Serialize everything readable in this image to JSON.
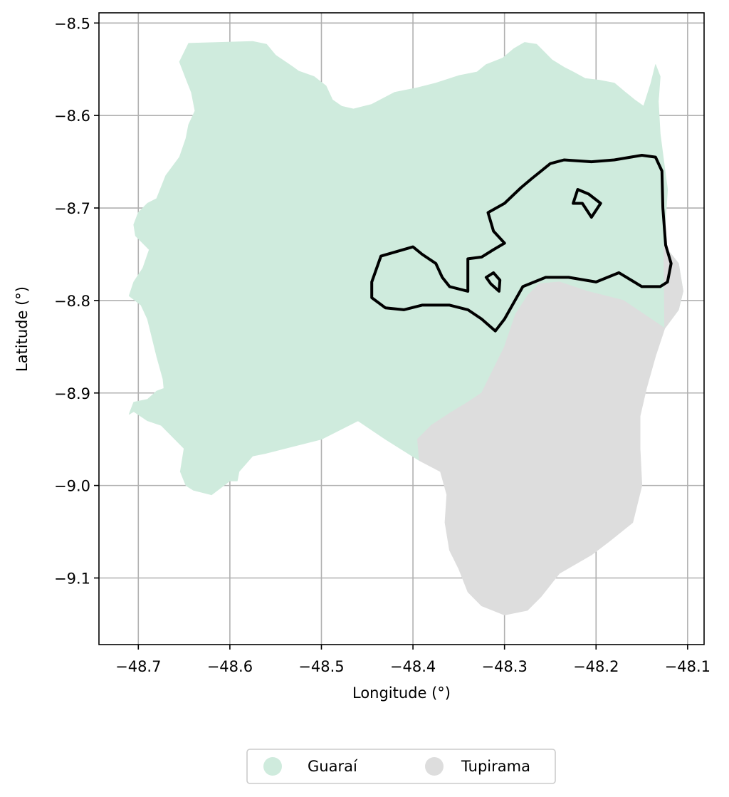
{
  "chart_data": {
    "type": "map",
    "xlabel": "Longitude (°)",
    "ylabel": "Latitude (°)",
    "xlim": [
      -48.743,
      -48.082
    ],
    "ylim": [
      -9.172,
      -8.489
    ],
    "grid": true,
    "xticks": [
      {
        "value": -48.7,
        "label": "−48.7"
      },
      {
        "value": -48.6,
        "label": "−48.6"
      },
      {
        "value": -48.5,
        "label": "−48.5"
      },
      {
        "value": -48.4,
        "label": "−48.4"
      },
      {
        "value": -48.3,
        "label": "−48.3"
      },
      {
        "value": -48.2,
        "label": "−48.2"
      },
      {
        "value": -48.1,
        "label": "−48.1"
      }
    ],
    "yticks": [
      {
        "value": -8.5,
        "label": "−8.5"
      },
      {
        "value": -8.6,
        "label": "−8.6"
      },
      {
        "value": -8.7,
        "label": "−8.7"
      },
      {
        "value": -8.8,
        "label": "−8.8"
      },
      {
        "value": -8.9,
        "label": "−8.9"
      },
      {
        "value": -9.0,
        "label": "−9.0"
      },
      {
        "value": -9.1,
        "label": "−9.1"
      }
    ],
    "legend": {
      "placement": "bottom-center",
      "entries": [
        {
          "name": "Guaraí",
          "color": "#cfebdd"
        },
        {
          "name": "Tupirama",
          "color": "#dddddd"
        }
      ]
    },
    "regions": [
      {
        "name": "Guaraí",
        "color": "#cfebdd",
        "coords": [
          [
            -48.655,
            -8.542
          ],
          [
            -48.645,
            -8.522
          ],
          [
            -48.575,
            -8.52
          ],
          [
            -48.56,
            -8.523
          ],
          [
            -48.55,
            -8.535
          ],
          [
            -48.538,
            -8.543
          ],
          [
            -48.532,
            -8.547
          ],
          [
            -48.525,
            -8.552
          ],
          [
            -48.508,
            -8.558
          ],
          [
            -48.495,
            -8.568
          ],
          [
            -48.488,
            -8.583
          ],
          [
            -48.478,
            -8.59
          ],
          [
            -48.465,
            -8.593
          ],
          [
            -48.445,
            -8.588
          ],
          [
            -48.42,
            -8.575
          ],
          [
            -48.395,
            -8.57
          ],
          [
            -48.375,
            -8.565
          ],
          [
            -48.35,
            -8.557
          ],
          [
            -48.33,
            -8.553
          ],
          [
            -48.32,
            -8.545
          ],
          [
            -48.302,
            -8.538
          ],
          [
            -48.29,
            -8.528
          ],
          [
            -48.278,
            -8.521
          ],
          [
            -48.265,
            -8.523
          ],
          [
            -48.248,
            -8.54
          ],
          [
            -48.235,
            -8.548
          ],
          [
            -48.225,
            -8.553
          ],
          [
            -48.212,
            -8.56
          ],
          [
            -48.196,
            -8.562
          ],
          [
            -48.18,
            -8.565
          ],
          [
            -48.168,
            -8.575
          ],
          [
            -48.158,
            -8.583
          ],
          [
            -48.148,
            -8.59
          ],
          [
            -48.14,
            -8.565
          ],
          [
            -48.135,
            -8.545
          ],
          [
            -48.13,
            -8.558
          ],
          [
            -48.132,
            -8.585
          ],
          [
            -48.13,
            -8.62
          ],
          [
            -48.126,
            -8.65
          ],
          [
            -48.122,
            -8.68
          ],
          [
            -48.124,
            -8.71
          ],
          [
            -48.126,
            -8.74
          ],
          [
            -48.11,
            -8.76
          ],
          [
            -48.105,
            -8.79
          ],
          [
            -48.11,
            -8.81
          ],
          [
            -48.125,
            -8.83
          ],
          [
            -48.17,
            -8.8
          ],
          [
            -48.21,
            -8.79
          ],
          [
            -48.24,
            -8.78
          ],
          [
            -48.262,
            -8.782
          ],
          [
            -48.275,
            -8.795
          ],
          [
            -48.288,
            -8.815
          ],
          [
            -48.3,
            -8.85
          ],
          [
            -48.315,
            -8.88
          ],
          [
            -48.325,
            -8.9
          ],
          [
            -48.34,
            -8.91
          ],
          [
            -48.36,
            -8.922
          ],
          [
            -48.38,
            -8.935
          ],
          [
            -48.395,
            -8.95
          ],
          [
            -48.393,
            -8.973
          ],
          [
            -48.43,
            -8.95
          ],
          [
            -48.46,
            -8.93
          ],
          [
            -48.48,
            -8.94
          ],
          [
            -48.5,
            -8.95
          ],
          [
            -48.54,
            -8.96
          ],
          [
            -48.56,
            -8.965
          ],
          [
            -48.575,
            -8.968
          ],
          [
            -48.59,
            -8.985
          ],
          [
            -48.592,
            -8.995
          ],
          [
            -48.6,
            -8.995
          ],
          [
            -48.62,
            -9.01
          ],
          [
            -48.64,
            -9.005
          ],
          [
            -48.648,
            -9.0
          ],
          [
            -48.654,
            -8.985
          ],
          [
            -48.65,
            -8.96
          ],
          [
            -48.665,
            -8.945
          ],
          [
            -48.675,
            -8.935
          ],
          [
            -48.69,
            -8.93
          ],
          [
            -48.705,
            -8.92
          ],
          [
            -48.71,
            -8.923
          ],
          [
            -48.705,
            -8.91
          ],
          [
            -48.69,
            -8.907
          ],
          [
            -48.68,
            -8.898
          ],
          [
            -48.672,
            -8.895
          ],
          [
            -48.673,
            -8.885
          ],
          [
            -48.68,
            -8.86
          ],
          [
            -48.685,
            -8.84
          ],
          [
            -48.69,
            -8.82
          ],
          [
            -48.697,
            -8.805
          ],
          [
            -48.71,
            -8.795
          ],
          [
            -48.705,
            -8.78
          ],
          [
            -48.695,
            -8.765
          ],
          [
            -48.688,
            -8.745
          ],
          [
            -48.703,
            -8.73
          ],
          [
            -48.705,
            -8.718
          ],
          [
            -48.7,
            -8.705
          ],
          [
            -48.69,
            -8.695
          ],
          [
            -48.68,
            -8.69
          ],
          [
            -48.67,
            -8.665
          ],
          [
            -48.655,
            -8.645
          ],
          [
            -48.648,
            -8.625
          ],
          [
            -48.645,
            -8.61
          ],
          [
            -48.638,
            -8.595
          ],
          [
            -48.642,
            -8.575
          ],
          [
            -48.648,
            -8.56
          ]
        ]
      },
      {
        "name": "Tupirama",
        "color": "#dddddd",
        "coords": [
          [
            -48.126,
            -8.74
          ],
          [
            -48.11,
            -8.76
          ],
          [
            -48.105,
            -8.79
          ],
          [
            -48.11,
            -8.81
          ],
          [
            -48.125,
            -8.83
          ],
          [
            -48.135,
            -8.86
          ],
          [
            -48.145,
            -8.895
          ],
          [
            -48.152,
            -8.925
          ],
          [
            -48.152,
            -8.96
          ],
          [
            -48.15,
            -9.0
          ],
          [
            -48.16,
            -9.04
          ],
          [
            -48.185,
            -9.06
          ],
          [
            -48.205,
            -9.075
          ],
          [
            -48.24,
            -9.095
          ],
          [
            -48.26,
            -9.12
          ],
          [
            -48.275,
            -9.135
          ],
          [
            -48.3,
            -9.14
          ],
          [
            -48.325,
            -9.13
          ],
          [
            -48.34,
            -9.115
          ],
          [
            -48.35,
            -9.09
          ],
          [
            -48.36,
            -9.07
          ],
          [
            -48.365,
            -9.04
          ],
          [
            -48.363,
            -9.01
          ],
          [
            -48.37,
            -8.985
          ],
          [
            -48.393,
            -8.973
          ],
          [
            -48.395,
            -8.95
          ],
          [
            -48.38,
            -8.935
          ],
          [
            -48.36,
            -8.922
          ],
          [
            -48.34,
            -8.91
          ],
          [
            -48.325,
            -8.9
          ],
          [
            -48.315,
            -8.88
          ],
          [
            -48.3,
            -8.85
          ],
          [
            -48.288,
            -8.815
          ],
          [
            -48.275,
            -8.795
          ],
          [
            -48.262,
            -8.782
          ],
          [
            -48.24,
            -8.78
          ],
          [
            -48.21,
            -8.79
          ],
          [
            -48.17,
            -8.8
          ],
          [
            -48.125,
            -8.83
          ]
        ]
      }
    ],
    "outlines": [
      {
        "name": "outer",
        "coords": [
          [
            -48.435,
            -8.752
          ],
          [
            -48.4,
            -8.742
          ],
          [
            -48.39,
            -8.75
          ],
          [
            -48.375,
            -8.76
          ],
          [
            -48.368,
            -8.775
          ],
          [
            -48.36,
            -8.785
          ],
          [
            -48.34,
            -8.79
          ],
          [
            -48.34,
            -8.755
          ],
          [
            -48.325,
            -8.753
          ],
          [
            -48.312,
            -8.745
          ],
          [
            -48.3,
            -8.738
          ],
          [
            -48.312,
            -8.725
          ],
          [
            -48.318,
            -8.705
          ],
          [
            -48.3,
            -8.695
          ],
          [
            -48.282,
            -8.678
          ],
          [
            -48.27,
            -8.668
          ],
          [
            -48.25,
            -8.652
          ],
          [
            -48.235,
            -8.648
          ],
          [
            -48.205,
            -8.65
          ],
          [
            -48.18,
            -8.648
          ],
          [
            -48.15,
            -8.643
          ],
          [
            -48.135,
            -8.645
          ],
          [
            -48.128,
            -8.66
          ],
          [
            -48.127,
            -8.7
          ],
          [
            -48.124,
            -8.74
          ],
          [
            -48.118,
            -8.76
          ],
          [
            -48.122,
            -8.78
          ],
          [
            -48.13,
            -8.785
          ],
          [
            -48.15,
            -8.785
          ],
          [
            -48.175,
            -8.77
          ],
          [
            -48.2,
            -8.78
          ],
          [
            -48.23,
            -8.775
          ],
          [
            -48.255,
            -8.775
          ],
          [
            -48.28,
            -8.785
          ],
          [
            -48.3,
            -8.82
          ],
          [
            -48.31,
            -8.833
          ],
          [
            -48.325,
            -8.82
          ],
          [
            -48.34,
            -8.81
          ],
          [
            -48.36,
            -8.805
          ],
          [
            -48.39,
            -8.805
          ],
          [
            -48.41,
            -8.81
          ],
          [
            -48.43,
            -8.808
          ],
          [
            -48.445,
            -8.797
          ],
          [
            -48.445,
            -8.78
          ]
        ]
      },
      {
        "name": "hole-1",
        "coords": [
          [
            -48.225,
            -8.695
          ],
          [
            -48.22,
            -8.68
          ],
          [
            -48.208,
            -8.685
          ],
          [
            -48.195,
            -8.695
          ],
          [
            -48.205,
            -8.71
          ],
          [
            -48.215,
            -8.695
          ]
        ]
      },
      {
        "name": "hole-2",
        "coords": [
          [
            -48.32,
            -8.775
          ],
          [
            -48.312,
            -8.77
          ],
          [
            -48.305,
            -8.778
          ],
          [
            -48.306,
            -8.79
          ],
          [
            -48.315,
            -8.782
          ]
        ]
      }
    ]
  }
}
